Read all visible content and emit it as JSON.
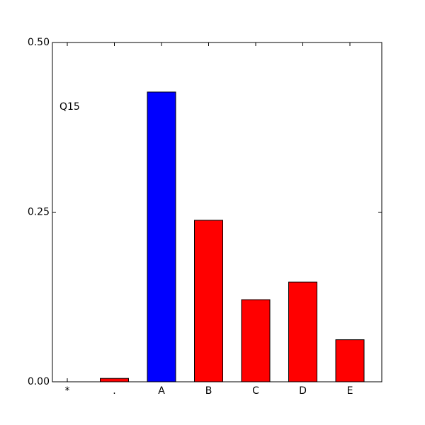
{
  "chart_data": {
    "type": "bar",
    "annotation": "Q15",
    "categories": [
      "*",
      ".",
      "A",
      "B",
      "C",
      "D",
      "E"
    ],
    "values": [
      0,
      0.005,
      0.427,
      0.238,
      0.121,
      0.147,
      0.062
    ],
    "colors": [
      "#ff0000",
      "#ff0000",
      "#0000ff",
      "#ff0000",
      "#ff0000",
      "#ff0000",
      "#ff0000"
    ],
    "ylim": [
      0,
      0.5
    ],
    "yticks": [
      {
        "value": 0,
        "label": "0.00"
      },
      {
        "value": 0.25,
        "label": "0.25"
      },
      {
        "value": 0.5,
        "label": "0.50"
      }
    ],
    "grid": false
  }
}
